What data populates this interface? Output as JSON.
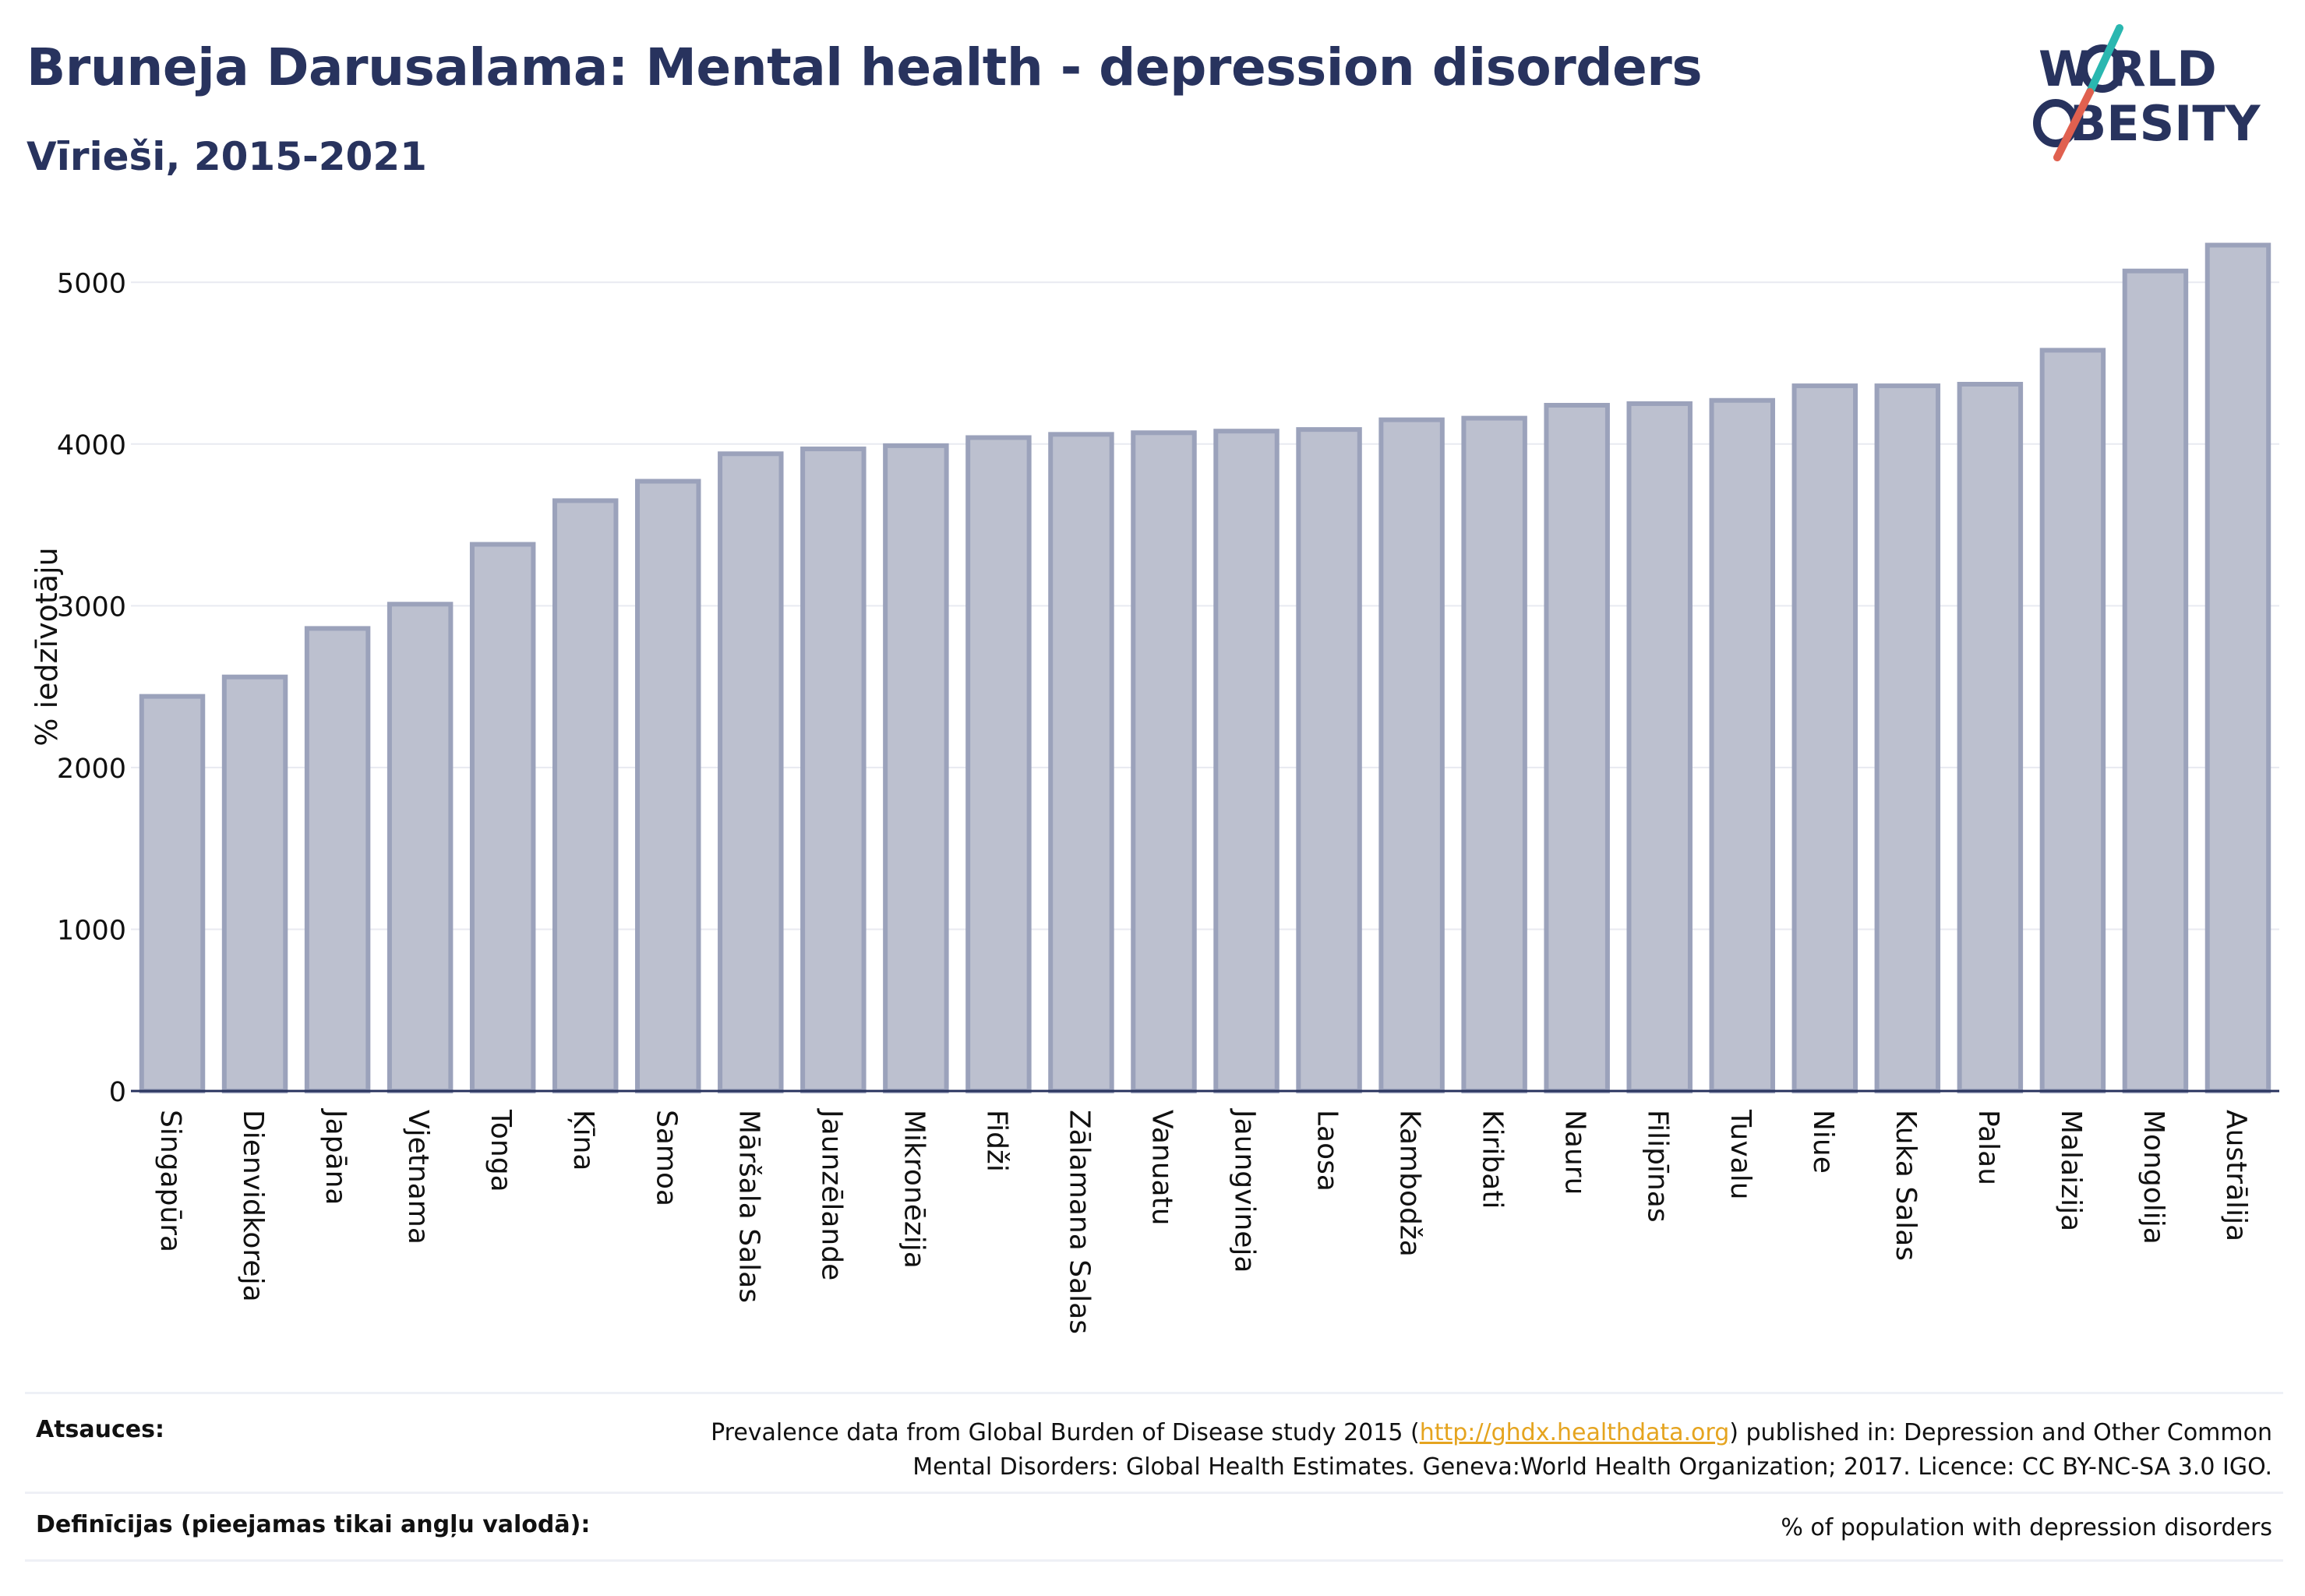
{
  "header": {
    "title": "Bruneja Darusalama: Mental health - depression disorders",
    "subtitle": "Vīrieši, 2015-2021"
  },
  "logo": {
    "line1": "W RLD",
    "line2": "BESITY",
    "text": "WORLD OBESITY",
    "colors": {
      "text": "#28335e",
      "slash_teal": "#2ab7b0",
      "slash_red": "#e0604f"
    }
  },
  "chart_data": {
    "type": "bar",
    "ylabel": "% iedzīvotāju",
    "ylim": [
      0,
      5300
    ],
    "yticks": [
      0,
      1000,
      2000,
      3000,
      4000,
      5000
    ],
    "grid": true,
    "categories": [
      "Singapūra",
      "Dienvidkoreja",
      "Japāna",
      "Vjetnama",
      "Tonga",
      "Ķīna",
      "Samoa",
      "Māršala Salas",
      "Jaunzēlande",
      "Mikronēzija",
      "Fidži",
      "Zālamana Salas",
      "Vanuatu",
      "Jaungvineja",
      "Laosa",
      "Kambodža",
      "Kiribati",
      "Nauru",
      "Filipīnas",
      "Tuvalu",
      "Niue",
      "Kuka Salas",
      "Palau",
      "Malaizija",
      "Mongolija",
      "Austrālija"
    ],
    "values": [
      2440,
      2560,
      2860,
      3010,
      3380,
      3650,
      3770,
      3940,
      3970,
      3990,
      4040,
      4060,
      4070,
      4080,
      4090,
      4150,
      4160,
      4240,
      4250,
      4270,
      4360,
      4360,
      4370,
      4580,
      5070,
      5230
    ],
    "colors": {
      "bar_fill": "#bcc0cf",
      "bar_stroke": "#9ba2bb",
      "grid": "#e8eaf1",
      "axis": "#28335e"
    }
  },
  "footer": {
    "sources_label": "Atsauces:",
    "sources_text_before": "Prevalence data from Global Burden of Disease study 2015 (",
    "sources_link": "http://ghdx.healthdata.org",
    "sources_text_after": ") published in: Depression and Other Common",
    "sources_text_line2": "Mental Disorders: Global Health Estimates. Geneva:World Health Organization; 2017. Licence: CC BY-NC-SA 3.0 IGO.",
    "definitions_label": "Definīcijas (pieejamas tikai angļu valodā):",
    "definitions_text": "% of population with depression disorders"
  }
}
